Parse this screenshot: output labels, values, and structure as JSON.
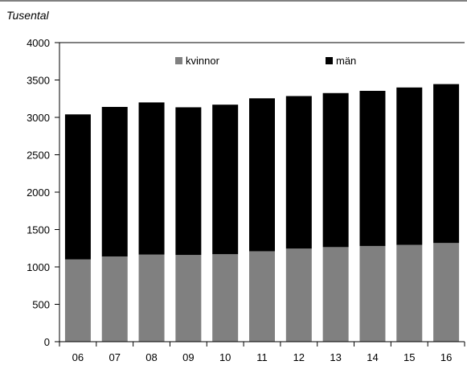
{
  "chart_data": {
    "type": "bar",
    "stacked": true,
    "unit_label": "Tusental",
    "categories": [
      "06",
      "07",
      "08",
      "09",
      "10",
      "11",
      "12",
      "13",
      "14",
      "15",
      "16"
    ],
    "series": [
      {
        "name": "kvinnor",
        "color": "#808080",
        "values": [
          1100,
          1140,
          1165,
          1160,
          1170,
          1210,
          1245,
          1265,
          1280,
          1295,
          1320
        ]
      },
      {
        "name": "män",
        "color": "#000000",
        "values": [
          1940,
          2000,
          2035,
          1975,
          2000,
          2045,
          2040,
          2060,
          2075,
          2105,
          2125
        ]
      }
    ],
    "ylim": [
      0,
      4000
    ],
    "yticks": [
      0,
      500,
      1000,
      1500,
      2000,
      2500,
      3000,
      3500,
      4000
    ],
    "grid": false,
    "legend_position": "top"
  }
}
